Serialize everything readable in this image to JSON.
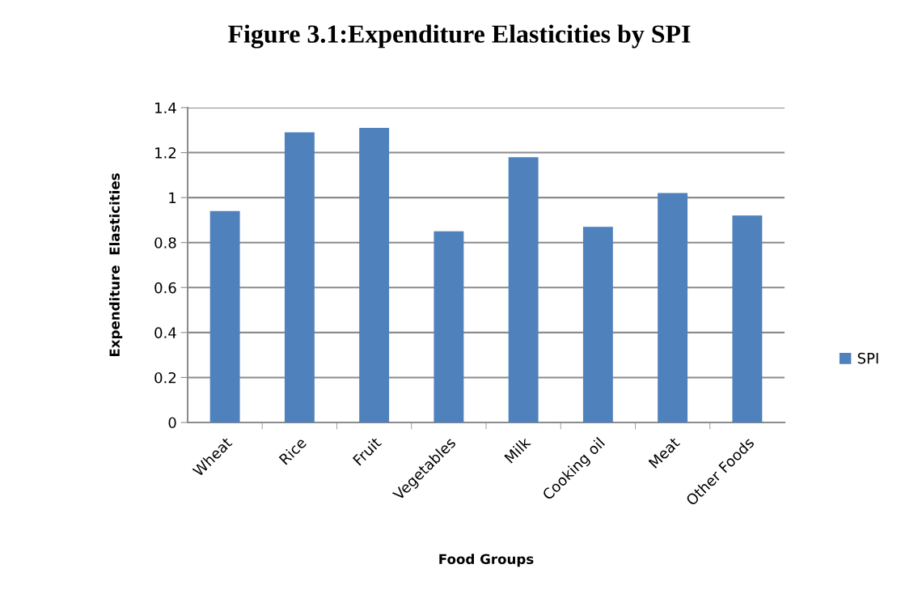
{
  "chart_data": {
    "type": "bar",
    "title": "Figure 3.1:Expenditure Elasticities by SPI",
    "xlabel": "Food Groups",
    "ylabel": "Expenditure  Elasticities",
    "categories": [
      "Wheat",
      "Rice",
      "Fruit",
      "Vegetables",
      "Milk",
      "Cooking oil",
      "Meat",
      "Other Foods"
    ],
    "series": [
      {
        "name": "SPI",
        "color": "#4f81bd",
        "values": [
          0.94,
          1.29,
          1.31,
          0.85,
          1.18,
          0.87,
          1.02,
          0.92
        ]
      }
    ],
    "ylim": [
      0,
      1.4
    ],
    "yticks": [
      0,
      0.2,
      0.4,
      0.6,
      0.8,
      1,
      1.2,
      1.4
    ],
    "grid": "y",
    "legend": "right"
  }
}
